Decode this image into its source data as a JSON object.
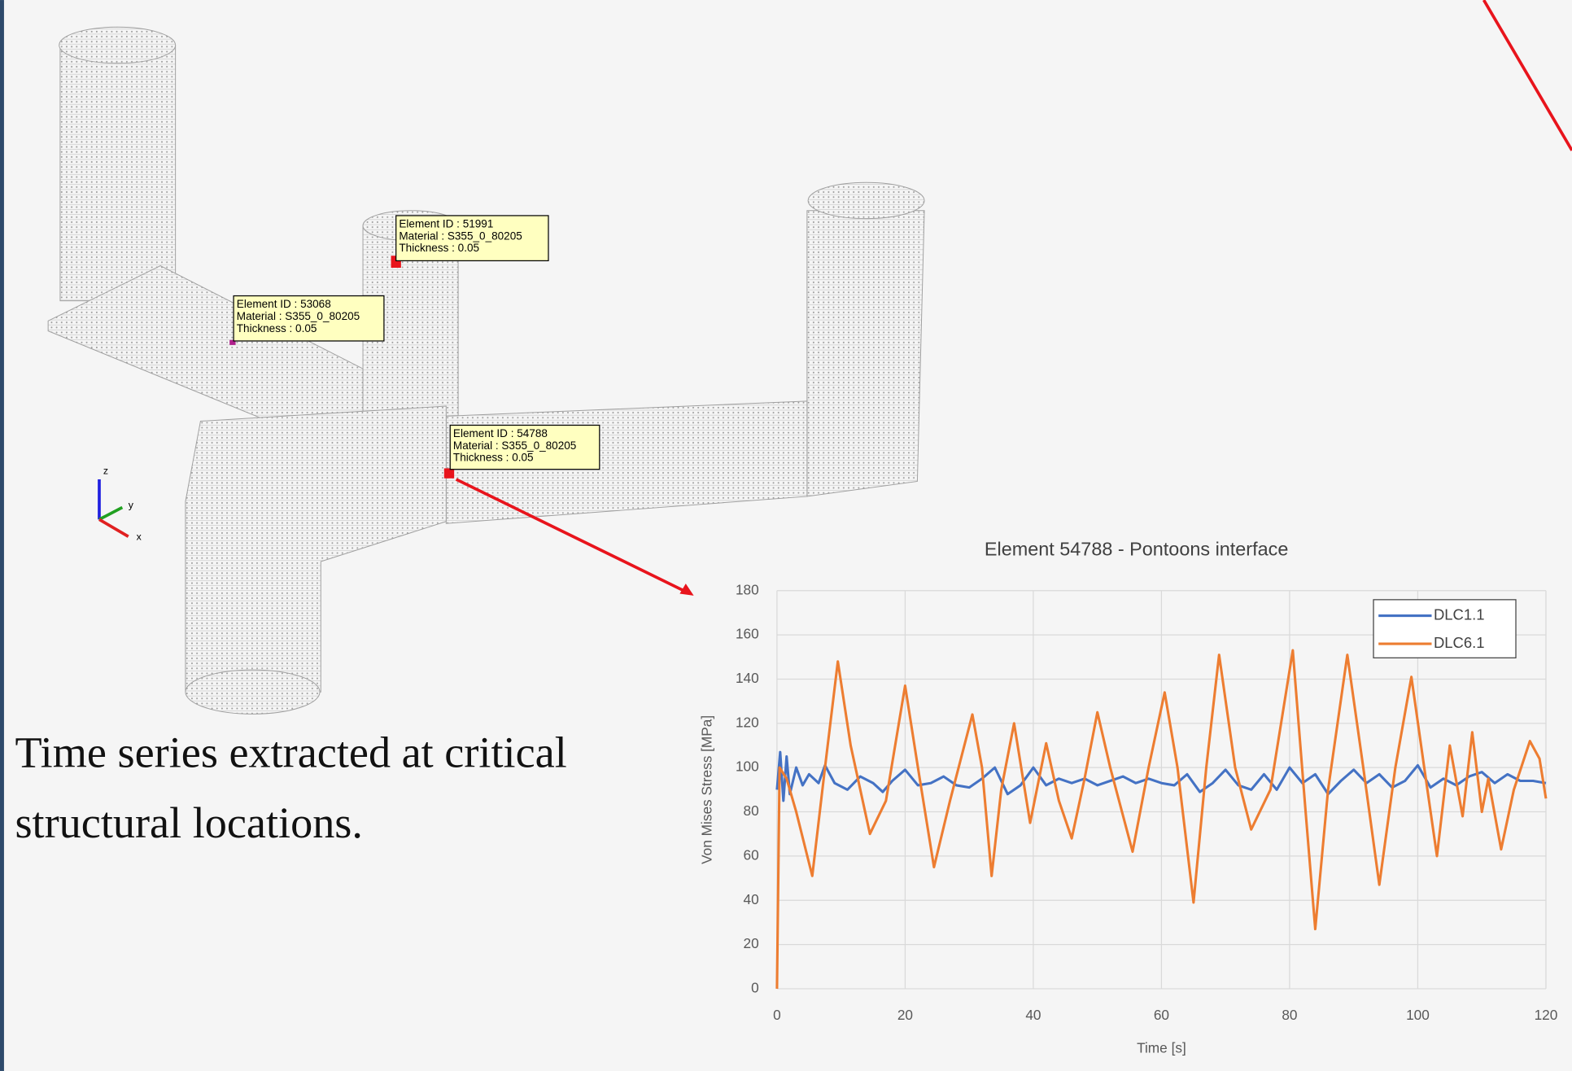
{
  "caption": [
    "Time series extracted at critical",
    "structural locations."
  ],
  "annotations": [
    {
      "lines": [
        "Element ID : 51991",
        "Material : S355_0_80205",
        "Thickness : 0.05"
      ]
    },
    {
      "lines": [
        "Element ID : 53068",
        "Material : S355_0_80205",
        "Thickness : 0.05"
      ]
    },
    {
      "lines": [
        "Element ID : 54788",
        "Material : S355_0_80205",
        "Thickness : 0.05"
      ]
    }
  ],
  "triad": [
    "z",
    "y",
    "x"
  ],
  "chart_data": {
    "type": "line",
    "title": "Element 54788 - Pontoons interface",
    "x_label": "Time [s]",
    "y_label": "Von Mises Stress [MPa]",
    "xlim": [
      0,
      120
    ],
    "xticks": [
      0,
      20,
      40,
      60,
      80,
      100,
      120
    ],
    "ylim": [
      0,
      180
    ],
    "yticks": [
      0,
      20,
      40,
      60,
      80,
      100,
      120,
      140,
      160,
      180
    ],
    "grid": true,
    "legend": "upper right",
    "series": [
      {
        "name": "DLC1.1",
        "color": "#4472c4",
        "x": [
          0,
          0.5,
          1,
          1.5,
          2,
          3,
          4,
          5,
          6.5,
          7.5,
          9,
          11,
          13,
          15,
          16.5,
          18,
          20,
          22,
          24,
          26,
          28,
          30,
          32,
          34,
          36,
          38,
          40,
          42,
          44,
          46,
          48,
          50,
          52,
          54,
          56,
          58,
          60,
          62,
          64,
          66,
          68,
          70,
          72,
          74,
          76,
          78,
          80,
          82,
          84,
          86,
          88,
          90,
          92,
          94,
          96,
          98,
          100,
          102,
          104,
          106,
          108,
          110,
          112,
          114,
          116,
          118,
          120
        ],
        "values": [
          90,
          107,
          85,
          105,
          88,
          100,
          92,
          97,
          93,
          101,
          93,
          90,
          96,
          93,
          89,
          94,
          99,
          92,
          93,
          96,
          92,
          91,
          95,
          100,
          88,
          92,
          100,
          92,
          95,
          93,
          95,
          92,
          94,
          96,
          93,
          95,
          93,
          92,
          97,
          89,
          93,
          99,
          92,
          90,
          97,
          90,
          100,
          93,
          97,
          88,
          94,
          99,
          93,
          97,
          91,
          94,
          101,
          91,
          95,
          92,
          96,
          98,
          93,
          97,
          94,
          94,
          93
        ]
      },
      {
        "name": "DLC6.1",
        "color": "#ed7d31",
        "x": [
          0,
          0.4,
          1.5,
          3,
          5.5,
          7.5,
          9.5,
          11.5,
          14.5,
          17,
          20,
          22,
          24.5,
          27,
          30.5,
          32,
          33.5,
          35,
          37,
          39.5,
          42,
          44,
          46,
          48,
          50,
          52,
          55.5,
          58,
          60.5,
          62.5,
          65,
          67,
          69,
          71.5,
          74,
          77,
          80.5,
          82.5,
          84,
          86,
          89,
          91.5,
          94,
          96.5,
          99,
          101,
          103,
          105,
          107,
          108.5,
          110,
          111,
          113,
          115,
          117.5,
          119,
          120
        ],
        "values": [
          0,
          100,
          95,
          80,
          51,
          100,
          148,
          110,
          70,
          85,
          137,
          100,
          55,
          85,
          124,
          100,
          51,
          90,
          120,
          75,
          111,
          85,
          68,
          95,
          125,
          100,
          62,
          100,
          134,
          100,
          39,
          100,
          151,
          100,
          72,
          90,
          153,
          80,
          27,
          90,
          151,
          100,
          47,
          100,
          141,
          100,
          60,
          110,
          78,
          116,
          80,
          95,
          63,
          90,
          112,
          104,
          86
        ]
      }
    ]
  }
}
